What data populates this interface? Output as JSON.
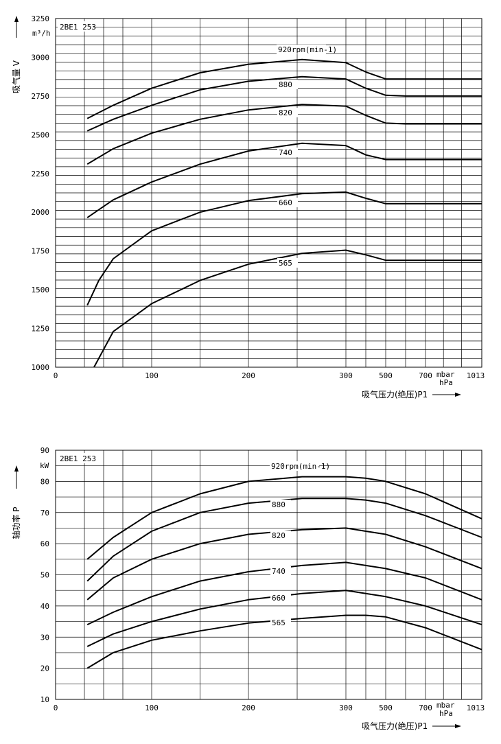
{
  "chart_data": [
    {
      "type": "line",
      "model": "2BE1 253",
      "y_unit": "m³/h",
      "ylabel": "吸气量 V",
      "xlabel": "吸气压力(绝压)P1",
      "x_unit_top": "mbar",
      "x_unit_bottom": "hPa",
      "ylim": [
        1000,
        3250
      ],
      "yticks": [
        "1000",
        "1250",
        "1500",
        "1750",
        "2000",
        "2250",
        "2500",
        "2750",
        "3000",
        "3250"
      ],
      "xticks": [
        "0",
        "100",
        "200",
        "300",
        "500",
        "700",
        "1013"
      ],
      "grid": true,
      "series": [
        {
          "name": "920rpm(min-1)",
          "points": [
            [
              33,
              2605
            ],
            [
              60,
              2690
            ],
            [
              100,
              2800
            ],
            [
              150,
              2900
            ],
            [
              200,
              2955
            ],
            [
              255,
              2985
            ],
            [
              300,
              2965
            ],
            [
              400,
              2905
            ],
            [
              500,
              2860
            ],
            [
              600,
              2860
            ],
            [
              1013,
              2860
            ]
          ]
        },
        {
          "name": "880",
          "points": [
            [
              33,
              2525
            ],
            [
              60,
              2600
            ],
            [
              100,
              2690
            ],
            [
              150,
              2790
            ],
            [
              200,
              2845
            ],
            [
              255,
              2875
            ],
            [
              300,
              2860
            ],
            [
              400,
              2800
            ],
            [
              500,
              2755
            ],
            [
              600,
              2750
            ],
            [
              1013,
              2750
            ]
          ]
        },
        {
          "name": "820",
          "points": [
            [
              33,
              2310
            ],
            [
              60,
              2410
            ],
            [
              100,
              2510
            ],
            [
              150,
              2600
            ],
            [
              200,
              2660
            ],
            [
              255,
              2695
            ],
            [
              300,
              2685
            ],
            [
              400,
              2625
            ],
            [
              500,
              2575
            ],
            [
              600,
              2570
            ],
            [
              1013,
              2570
            ]
          ]
        },
        {
          "name": "740",
          "points": [
            [
              33,
              1965
            ],
            [
              60,
              2080
            ],
            [
              100,
              2195
            ],
            [
              150,
              2310
            ],
            [
              200,
              2395
            ],
            [
              255,
              2445
            ],
            [
              300,
              2430
            ],
            [
              400,
              2370
            ],
            [
              500,
              2340
            ],
            [
              600,
              2340
            ],
            [
              1013,
              2340
            ]
          ]
        },
        {
          "name": "660",
          "points": [
            [
              33,
              1400
            ],
            [
              45,
              1560
            ],
            [
              60,
              1700
            ],
            [
              100,
              1880
            ],
            [
              150,
              2000
            ],
            [
              200,
              2075
            ],
            [
              255,
              2120
            ],
            [
              300,
              2130
            ],
            [
              400,
              2090
            ],
            [
              500,
              2055
            ],
            [
              600,
              2055
            ],
            [
              1013,
              2055
            ]
          ]
        },
        {
          "name": "565",
          "points": [
            [
              40,
              1000
            ],
            [
              60,
              1230
            ],
            [
              100,
              1410
            ],
            [
              150,
              1560
            ],
            [
              200,
              1665
            ],
            [
              255,
              1735
            ],
            [
              300,
              1755
            ],
            [
              400,
              1725
            ],
            [
              500,
              1690
            ],
            [
              600,
              1690
            ],
            [
              1013,
              1690
            ]
          ]
        }
      ]
    },
    {
      "type": "line",
      "model": "2BE1 253",
      "y_unit": "kW",
      "ylabel": "轴功率 P",
      "xlabel": "吸气压力(绝压)P1",
      "x_unit_top": "mbar",
      "x_unit_bottom": "hPa",
      "ylim": [
        10,
        90
      ],
      "yticks": [
        "10",
        "20",
        "30",
        "40",
        "50",
        "60",
        "70",
        "80",
        "90"
      ],
      "xticks": [
        "0",
        "100",
        "200",
        "300",
        "500",
        "700",
        "1013"
      ],
      "grid": true,
      "series": [
        {
          "name": "920rpm(min-1)",
          "points": [
            [
              33,
              55
            ],
            [
              60,
              62
            ],
            [
              100,
              70
            ],
            [
              150,
              76
            ],
            [
              200,
              80
            ],
            [
              255,
              81.5
            ],
            [
              300,
              81.5
            ],
            [
              400,
              81
            ],
            [
              500,
              80
            ],
            [
              700,
              76
            ],
            [
              1013,
              68
            ]
          ]
        },
        {
          "name": "880",
          "points": [
            [
              33,
              48
            ],
            [
              60,
              56
            ],
            [
              100,
              64
            ],
            [
              150,
              70
            ],
            [
              200,
              73
            ],
            [
              255,
              74.5
            ],
            [
              300,
              74.5
            ],
            [
              400,
              74
            ],
            [
              500,
              73
            ],
            [
              700,
              69
            ],
            [
              1013,
              62
            ]
          ]
        },
        {
          "name": "820",
          "points": [
            [
              33,
              42
            ],
            [
              60,
              49
            ],
            [
              100,
              55
            ],
            [
              150,
              60
            ],
            [
              200,
              63
            ],
            [
              255,
              64.5
            ],
            [
              300,
              65
            ],
            [
              400,
              64
            ],
            [
              500,
              63
            ],
            [
              700,
              59
            ],
            [
              1013,
              52
            ]
          ]
        },
        {
          "name": "740",
          "points": [
            [
              33,
              34
            ],
            [
              60,
              38
            ],
            [
              100,
              43
            ],
            [
              150,
              48
            ],
            [
              200,
              51
            ],
            [
              255,
              53
            ],
            [
              300,
              54
            ],
            [
              400,
              53
            ],
            [
              500,
              52
            ],
            [
              700,
              49
            ],
            [
              1013,
              42
            ]
          ]
        },
        {
          "name": "660",
          "points": [
            [
              33,
              27
            ],
            [
              60,
              31
            ],
            [
              100,
              35
            ],
            [
              150,
              39
            ],
            [
              200,
              42
            ],
            [
              255,
              44
            ],
            [
              300,
              45
            ],
            [
              400,
              44
            ],
            [
              500,
              43
            ],
            [
              700,
              40
            ],
            [
              1013,
              34
            ]
          ]
        },
        {
          "name": "565",
          "points": [
            [
              33,
              20
            ],
            [
              60,
              25
            ],
            [
              100,
              29
            ],
            [
              150,
              32
            ],
            [
              200,
              34.5
            ],
            [
              255,
              36
            ],
            [
              300,
              37
            ],
            [
              400,
              37
            ],
            [
              500,
              36.5
            ],
            [
              700,
              33
            ],
            [
              1013,
              26
            ]
          ]
        }
      ]
    }
  ]
}
